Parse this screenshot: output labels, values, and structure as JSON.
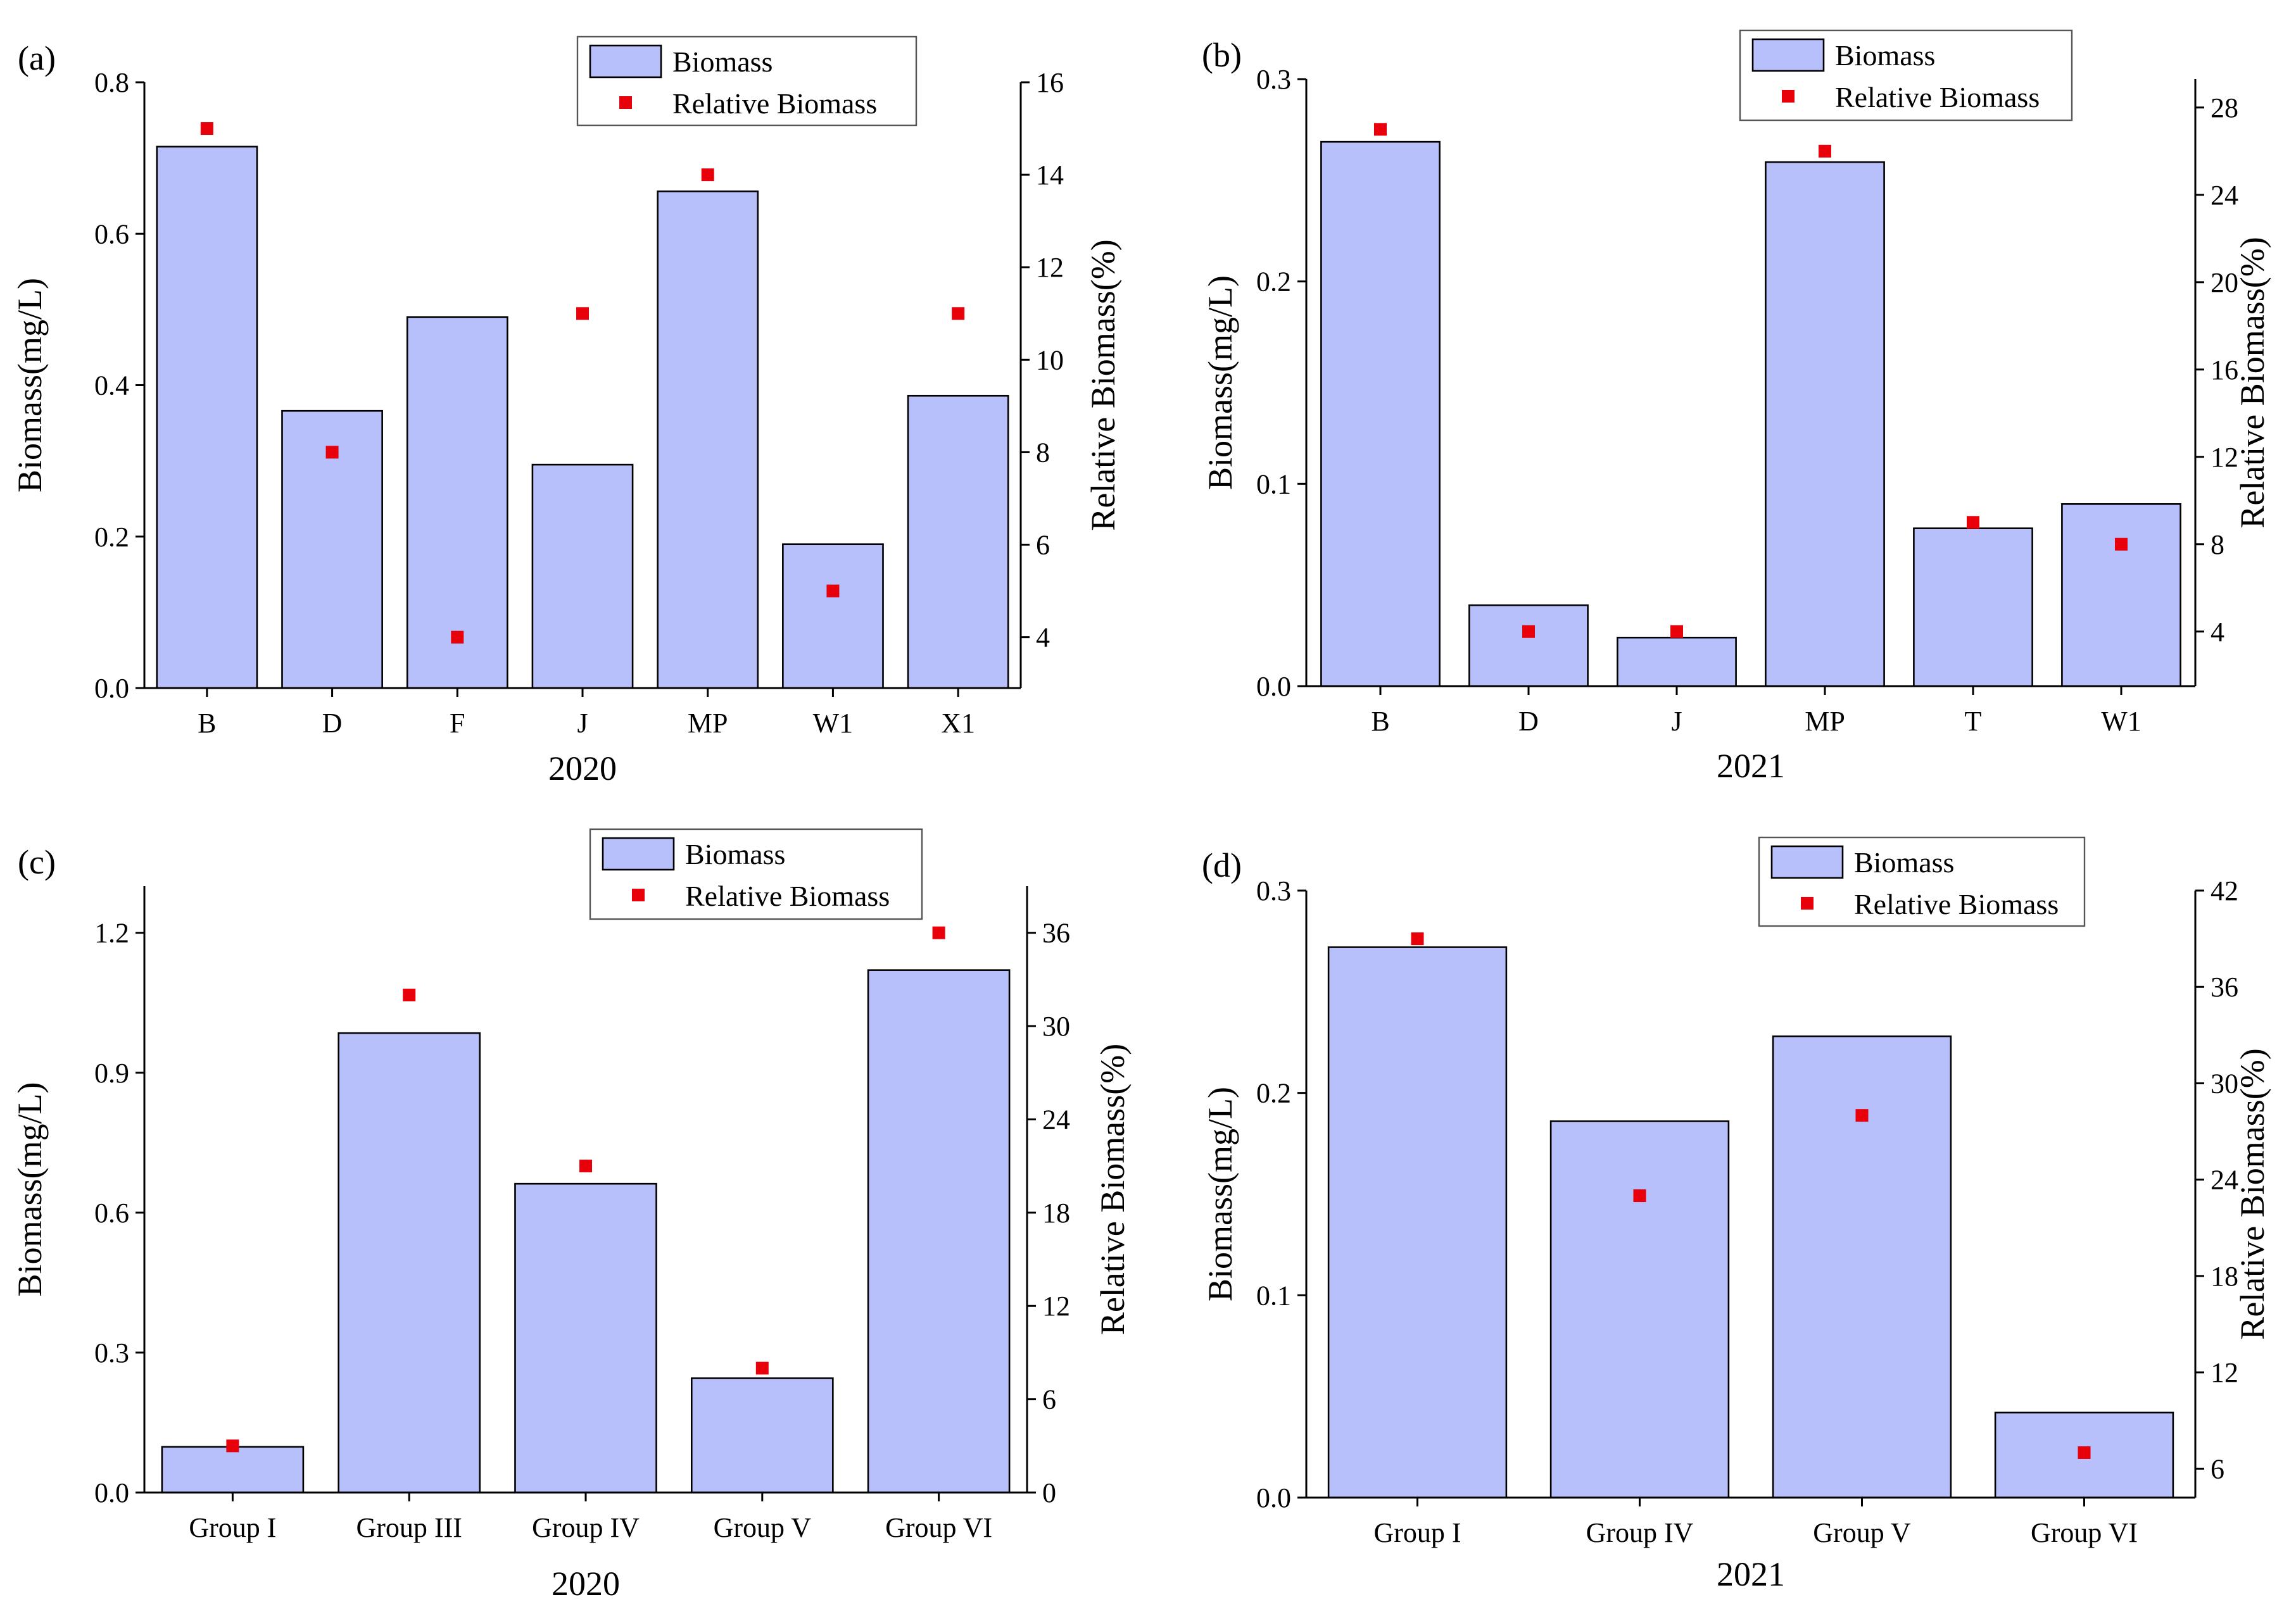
{
  "figure": {
    "legend": {
      "bar_label": "Biomass",
      "point_label": "Relative Biomass"
    }
  },
  "colors": {
    "bar_fill": "#b8c0fb",
    "bar_edge": "#000000",
    "point": "#e8000b"
  },
  "chart_data": [
    {
      "panel": "(a)",
      "type": "bar",
      "categories": [
        "B",
        "D",
        "F",
        "J",
        "MP",
        "W1",
        "X1"
      ],
      "series": [
        {
          "name": "Biomass",
          "axis": "left",
          "values": [
            0.715,
            0.366,
            0.49,
            0.295,
            0.656,
            0.19,
            0.386
          ]
        },
        {
          "name": "Relative Biomass",
          "axis": "right",
          "type": "scatter",
          "values": [
            15,
            8,
            4,
            11,
            14,
            5,
            11
          ]
        }
      ],
      "xlabel": "2020",
      "ylabel": "Biomass(mg/L)",
      "y2label": "Relative Biomass(%)",
      "ylim": [
        0,
        0.8
      ],
      "yticks": [
        "0.0",
        "0.2",
        "0.4",
        "0.6",
        "0.8"
      ],
      "y2lim": [
        2.9,
        16
      ],
      "y2ticks": [
        "4",
        "6",
        "8",
        "10",
        "12",
        "14",
        "16"
      ]
    },
    {
      "panel": "(b)",
      "type": "bar",
      "categories": [
        "B",
        "D",
        "J",
        "MP",
        "T",
        "W1"
      ],
      "series": [
        {
          "name": "Biomass",
          "axis": "left",
          "values": [
            0.269,
            0.04,
            0.024,
            0.259,
            0.078,
            0.09
          ]
        },
        {
          "name": "Relative Biomass",
          "axis": "right",
          "type": "scatter",
          "values": [
            27,
            4,
            4,
            26,
            9,
            8
          ]
        }
      ],
      "xlabel": "2021",
      "ylabel": "Biomass(mg/L)",
      "y2label": "Relative Biomass(%)",
      "ylim": [
        0,
        0.3
      ],
      "yticks": [
        "0.0",
        "0.1",
        "0.2",
        "0.3"
      ],
      "y2lim": [
        1.5,
        29.3
      ],
      "y2ticks": [
        "4",
        "8",
        "12",
        "16",
        "20",
        "24",
        "28"
      ]
    },
    {
      "panel": "(c)",
      "type": "bar",
      "categories": [
        "Group I",
        "Group III",
        "Group IV",
        "Group V",
        "Group VI"
      ],
      "series": [
        {
          "name": "Biomass",
          "axis": "left",
          "values": [
            0.098,
            0.985,
            0.662,
            0.245,
            1.12
          ]
        },
        {
          "name": "Relative Biomass",
          "axis": "right",
          "type": "scatter",
          "values": [
            3,
            32,
            21,
            8,
            36
          ]
        }
      ],
      "xlabel": "2020",
      "ylabel": "Biomass(mg/L)",
      "y2label": "Relative Biomass(%)",
      "ylim": [
        0,
        1.3
      ],
      "yticks": [
        "0.0",
        "0.3",
        "0.6",
        "0.9",
        "1.2"
      ],
      "y2lim": [
        0,
        39
      ],
      "y2ticks": [
        "0",
        "6",
        "12",
        "18",
        "24",
        "30",
        "36"
      ]
    },
    {
      "panel": "(d)",
      "type": "bar",
      "categories": [
        "Group I",
        "Group IV",
        "Group V",
        "Group VI"
      ],
      "series": [
        {
          "name": "Biomass",
          "axis": "left",
          "values": [
            0.272,
            0.186,
            0.228,
            0.042
          ]
        },
        {
          "name": "Relative Biomass",
          "axis": "right",
          "type": "scatter",
          "values": [
            39,
            23,
            28,
            7
          ]
        }
      ],
      "xlabel": "2021",
      "ylabel": "Biomass(mg/L)",
      "y2label": "Relative Biomass(%)",
      "ylim": [
        0,
        0.3
      ],
      "yticks": [
        "0.0",
        "0.1",
        "0.2",
        "0.3"
      ],
      "y2lim": [
        4.2,
        42
      ],
      "y2ticks": [
        "6",
        "12",
        "18",
        "24",
        "30",
        "36",
        "42"
      ]
    }
  ]
}
